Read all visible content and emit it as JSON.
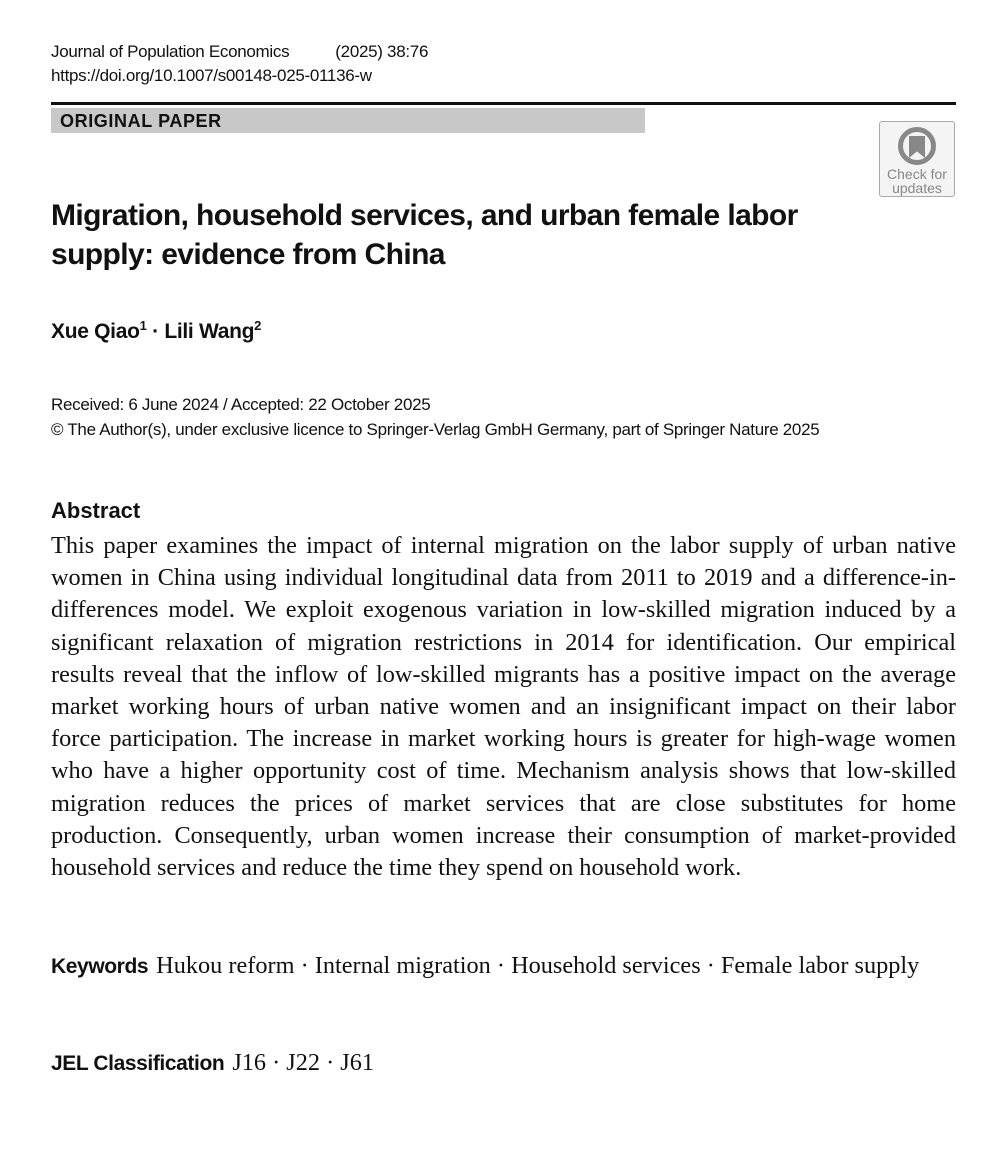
{
  "header": {
    "journal": "Journal of Population Economics",
    "volume": "(2025) 38:76",
    "doi": "https://doi.org/10.1007/s00148-025-01136-w"
  },
  "article_type": "ORIGINAL PAPER",
  "badge": {
    "line1": "Check for",
    "line2": "updates",
    "icon": "check-for-updates-icon"
  },
  "title": "Migration, household services, and urban female labor supply: evidence from China",
  "authors": [
    {
      "name": "Xue Qiao",
      "aff": "1"
    },
    {
      "name": "Lili Wang",
      "aff": "2"
    }
  ],
  "author_sep": " · ",
  "dates": "Received: 6 June 2024 / Accepted: 22 October 2025",
  "copyright": "© The Author(s), under exclusive licence to Springer-Verlag GmbH Germany, part of Springer Nature 2025",
  "abstract": {
    "heading": "Abstract",
    "text": "This paper examines the impact of internal migration on the labor supply of urban native women in China using individual longitudinal data from 2011 to 2019 and a difference-in-differences model. We exploit exogenous variation in low-skilled migration induced by a significant relaxation of migration restrictions in 2014 for identification. Our empirical results reveal that the inflow of low-skilled migrants has a positive impact on the average market working hours of urban native women and an insignificant impact on their labor force participation. The increase in market working hours is greater for high-wage women who have a higher opportunity cost of time. Mechanism analysis shows that low-skilled migration reduces the prices of market services that are close substitutes for home production. Consequently, urban women increase their consumption of market-provided household services and reduce the time they spend on household work."
  },
  "keywords": {
    "label": "Keywords",
    "text": "Hukou reform · Internal migration · Household services · Female labor supply"
  },
  "jel": {
    "label": "JEL Classification",
    "text": "J16 · J22 · J61"
  }
}
